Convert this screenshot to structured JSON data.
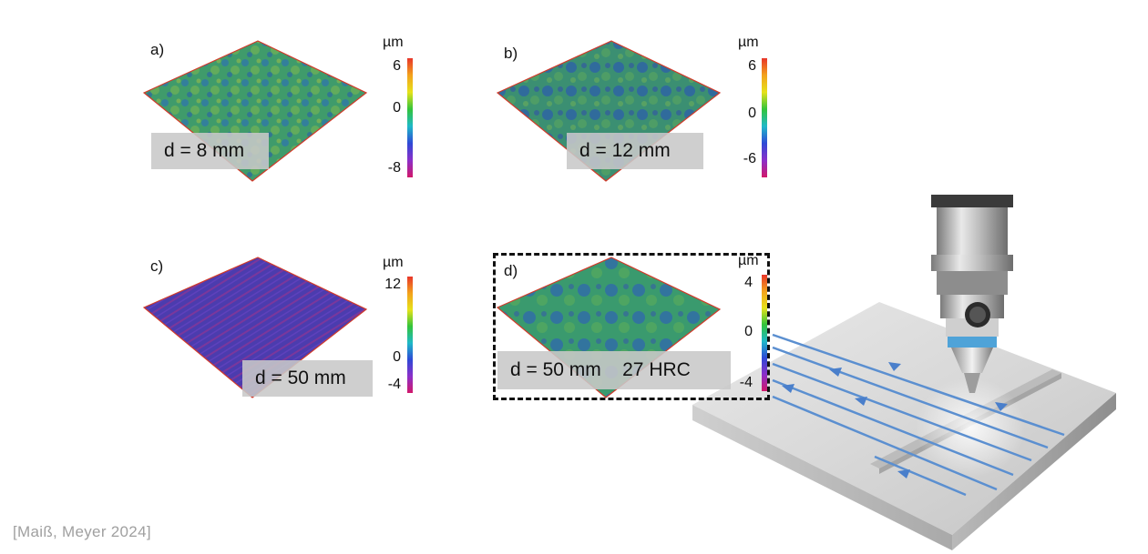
{
  "panels": [
    {
      "label": "a)",
      "unit": "µm",
      "ticks": [
        "6",
        "0",
        "-8"
      ],
      "distance": "d = 8 mm"
    },
    {
      "label": "b)",
      "unit": "µm",
      "ticks": [
        "6",
        "0",
        "-6"
      ],
      "distance": "d = 12 mm"
    },
    {
      "label": "c)",
      "unit": "µm",
      "ticks": [
        "12",
        "0",
        "-4"
      ],
      "distance": "d = 50 mm"
    },
    {
      "label": "d)",
      "unit": "µm",
      "ticks": [
        "4",
        "0",
        "-4"
      ],
      "distance": "d = 50 mm    27 HRC"
    }
  ],
  "citation": "[Maiß,  Meyer  2024]",
  "colors": {
    "surface_green": "#3d9a6a",
    "surface_blue": "#2f6fb0",
    "surface_purple": "#5b3fb0",
    "frame_red": "#d23a2a",
    "tool_path": "#5b8fd0"
  }
}
